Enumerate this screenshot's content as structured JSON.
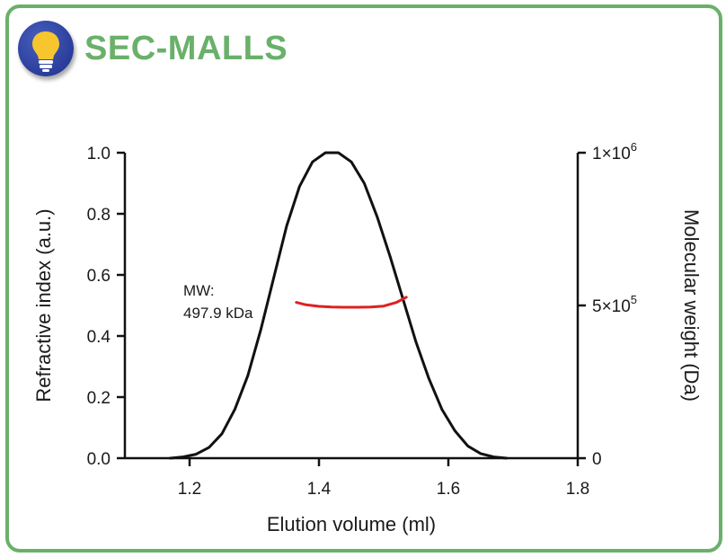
{
  "header": {
    "title": "SEC-MALLS",
    "icon": "lightbulb-icon"
  },
  "colors": {
    "frame": "#6ab06a",
    "title": "#6ab06a",
    "curve": "#111111",
    "mw_line": "#e02020"
  },
  "chart_data": {
    "type": "line",
    "xlabel": "Elution volume (ml)",
    "ylabel": "Refractive index (a.u.)",
    "y2label": "Molecular weight (Da)",
    "xlim": [
      1.1,
      1.8
    ],
    "ylim": [
      0,
      1.0
    ],
    "y2lim": [
      0,
      1000000
    ],
    "x_ticks": [
      "1.2",
      "1.4",
      "1.6",
      "1.8"
    ],
    "x_tick_values": [
      1.2,
      1.4,
      1.6,
      1.8
    ],
    "y_ticks": [
      "0.0",
      "0.2",
      "0.4",
      "0.6",
      "0.8",
      "1.0"
    ],
    "y_tick_values": [
      0.0,
      0.2,
      0.4,
      0.6,
      0.8,
      1.0
    ],
    "y2_ticks": [
      {
        "value": 0,
        "base": "0",
        "exp": ""
      },
      {
        "value": 500000,
        "base": "5×10",
        "exp": "5"
      },
      {
        "value": 1000000,
        "base": "1×10",
        "exp": "6"
      }
    ],
    "series": [
      {
        "axis": "left",
        "x": [
          1.17,
          1.19,
          1.21,
          1.23,
          1.25,
          1.27,
          1.29,
          1.31,
          1.33,
          1.35,
          1.37,
          1.39,
          1.41,
          1.43,
          1.45,
          1.47,
          1.49,
          1.51,
          1.53,
          1.55,
          1.57,
          1.59,
          1.61,
          1.63,
          1.65,
          1.67,
          1.69
        ],
        "y": [
          0.0,
          0.004,
          0.013,
          0.035,
          0.08,
          0.16,
          0.27,
          0.42,
          0.59,
          0.76,
          0.89,
          0.97,
          1.0,
          1.0,
          0.97,
          0.9,
          0.79,
          0.66,
          0.52,
          0.38,
          0.26,
          0.16,
          0.09,
          0.04,
          0.015,
          0.004,
          0.0
        ]
      },
      {
        "axis": "right",
        "x": [
          1.365,
          1.38,
          1.4,
          1.42,
          1.44,
          1.46,
          1.48,
          1.5,
          1.52,
          1.535
        ],
        "y": [
          510000,
          502000,
          497000,
          495000,
          494000,
          494000,
          495000,
          498000,
          510000,
          527000
        ]
      }
    ],
    "annotation": {
      "line1": "MW:",
      "line2": "497.9 kDa"
    }
  }
}
